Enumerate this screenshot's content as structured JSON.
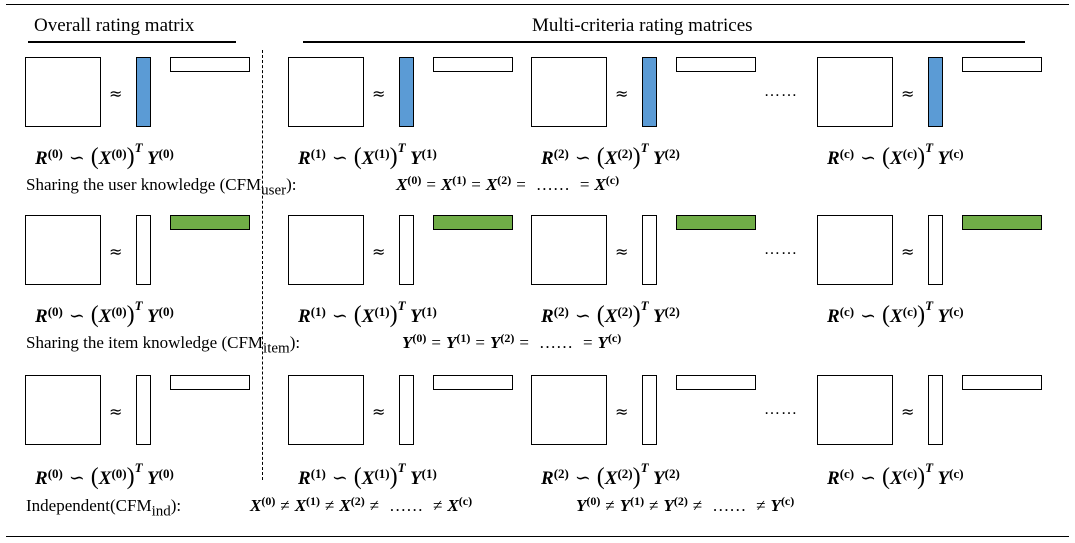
{
  "headers": {
    "overall": "Overall rating matrix",
    "multi": "Multi-criteria rating  matrices"
  },
  "colors": {
    "user": "#5b9bd5",
    "item": "#70ad47",
    "border": "#000000"
  },
  "symbols": {
    "approx": "≈",
    "dots": "……",
    "sim": "∽",
    "eq": "=",
    "neq": "≠",
    "T": "T"
  },
  "rows": [
    {
      "eqs": [
        {
          "R": "R",
          "Rs": "(0)",
          "X": "X",
          "Xs": "(0)",
          "Y": "Y",
          "Ys": "(0)"
        },
        {
          "R": "R",
          "Rs": "(1)",
          "X": "X",
          "Xs": "(1)",
          "Y": "Y",
          "Ys": "(1)"
        },
        {
          "R": "R",
          "Rs": "(2)",
          "X": "X",
          "Xs": "(2)",
          "Y": "Y",
          "Ys": "(2)"
        },
        {
          "R": "R",
          "Rs": "(c)",
          "X": "X",
          "Xs": "(c)",
          "Y": "Y",
          "Ys": "(c)"
        }
      ],
      "label": "Sharing the user knowledge (CFM",
      "label_sub": "user",
      "label_end": "):",
      "relation": "X(0) = X(1) = X(2) =…… = X(c)"
    },
    {
      "eqs": [
        {
          "R": "R",
          "Rs": "(0)",
          "X": "X",
          "Xs": "(0)",
          "Y": "Y",
          "Ys": "(0)"
        },
        {
          "R": "R",
          "Rs": "(1)",
          "X": "X",
          "Xs": "(1)",
          "Y": "Y",
          "Ys": "(1)"
        },
        {
          "R": "R",
          "Rs": "(2)",
          "X": "X",
          "Xs": "(2)",
          "Y": "Y",
          "Ys": "(2)"
        },
        {
          "R": "R",
          "Rs": "(c)",
          "X": "X",
          "Xs": "(c)",
          "Y": "Y",
          "Ys": "(c)"
        }
      ],
      "label": "Sharing the item knowledge (CFM",
      "label_sub": "item",
      "label_end": "):",
      "relation": "Y(0) = Y(1) = Y(2) =…… = Y(c)"
    },
    {
      "eqs": [
        {
          "R": "R",
          "Rs": "(0)",
          "X": "X",
          "Xs": "(0)",
          "Y": "Y",
          "Ys": "(0)"
        },
        {
          "R": "R",
          "Rs": "(1)",
          "X": "X",
          "Xs": "(1)",
          "Y": "Y",
          "Ys": "(1)"
        },
        {
          "R": "R",
          "Rs": "(2)",
          "X": "X",
          "Xs": "(2)",
          "Y": "Y",
          "Ys": "(2)"
        },
        {
          "R": "R",
          "Rs": "(c)",
          "X": "X",
          "Xs": "(c)",
          "Y": "Y",
          "Ys": "(c)"
        }
      ],
      "label": "Independent(CFM",
      "label_sub": "ind",
      "label_end": "):",
      "relation": "X(0) ≠ X(1) ≠ X(2) ≠…… ≠ X(c)",
      "relation2": "Y(0) ≠ Y(1) ≠ Y(2) ≠…… ≠ Y(c)"
    }
  ]
}
